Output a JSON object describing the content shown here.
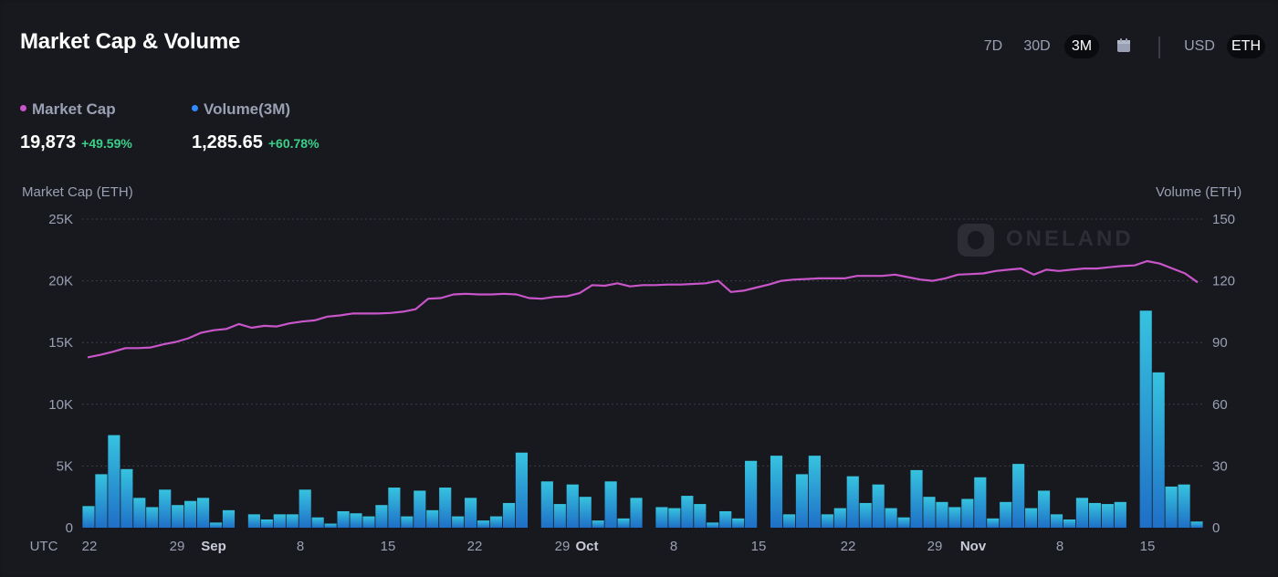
{
  "header": {
    "title": "Market Cap & Volume",
    "range_buttons": [
      "7D",
      "30D",
      "3M"
    ],
    "active_range": "3M",
    "currency_buttons": [
      "USD",
      "ETH"
    ],
    "active_currency": "ETH"
  },
  "metrics": {
    "market_cap": {
      "label": "Market Cap",
      "value": "19,873",
      "change": "+49.59%",
      "color": "#c855c9"
    },
    "volume": {
      "label": "Volume(3M)",
      "value": "1,285.65",
      "change": "+60.78%",
      "color": "#2f8bff"
    }
  },
  "watermark": "ONELAND",
  "chart_data": {
    "type": "bar+line",
    "left_axis_label": "Market Cap (ETH)",
    "right_axis_label": "Volume (ETH)",
    "left_ticks": [
      "0",
      "5K",
      "10K",
      "15K",
      "20K",
      "25K"
    ],
    "right_ticks": [
      "0",
      "30",
      "60",
      "90",
      "120",
      "150"
    ],
    "ylim_left": [
      0,
      25000
    ],
    "ylim_right": [
      0,
      150
    ],
    "x_labels": [
      {
        "label": "UTC",
        "bold": false
      },
      {
        "label": "22",
        "bold": false
      },
      {
        "label": "29",
        "bold": false
      },
      {
        "label": "Sep",
        "bold": true
      },
      {
        "label": "8",
        "bold": false
      },
      {
        "label": "15",
        "bold": false
      },
      {
        "label": "22",
        "bold": false
      },
      {
        "label": "29",
        "bold": false
      },
      {
        "label": "Oct",
        "bold": true
      },
      {
        "label": "8",
        "bold": false
      },
      {
        "label": "15",
        "bold": false
      },
      {
        "label": "22",
        "bold": false
      },
      {
        "label": "29",
        "bold": false
      },
      {
        "label": "Nov",
        "bold": true
      },
      {
        "label": "8",
        "bold": false
      },
      {
        "label": "15",
        "bold": false
      }
    ],
    "series": [
      {
        "name": "Volume",
        "type": "bar",
        "axis": "right",
        "color": "#2fb4dc",
        "values": [
          10.5,
          26,
          45,
          28.5,
          14.5,
          10,
          18.5,
          11,
          13,
          14.5,
          2.5,
          8.5,
          0,
          6.5,
          4,
          6.5,
          6.5,
          18.5,
          5,
          2,
          8,
          7,
          5.5,
          11,
          19.5,
          5.5,
          18,
          8.5,
          19.5,
          5.5,
          14.5,
          3.5,
          5.5,
          12,
          36.5,
          0,
          22.5,
          11.5,
          21,
          15,
          3.5,
          22.5,
          4.5,
          14.5,
          0,
          10,
          9.5,
          15.5,
          11.5,
          2.5,
          8,
          4.5,
          32.5,
          0,
          35,
          6.5,
          26,
          35,
          6.5,
          9.5,
          25,
          12,
          21,
          9.5,
          5,
          28,
          15,
          12.5,
          10,
          14,
          24.5,
          4.5,
          12.5,
          31,
          9.5,
          18,
          6.5,
          4,
          14.5,
          12,
          11.5,
          12.5,
          0,
          105.5,
          75.5,
          20,
          21,
          3
        ]
      },
      {
        "name": "Market Cap",
        "type": "line",
        "axis": "left",
        "color": "#c855c9",
        "values": [
          13800,
          14000,
          14250,
          14550,
          14550,
          14600,
          14850,
          15050,
          15350,
          15800,
          16000,
          16100,
          16500,
          16200,
          16350,
          16300,
          16550,
          16700,
          16800,
          17100,
          17200,
          17350,
          17350,
          17350,
          17400,
          17500,
          17700,
          18550,
          18600,
          18900,
          18950,
          18900,
          18900,
          18950,
          18900,
          18600,
          18550,
          18700,
          18750,
          19000,
          19650,
          19600,
          19800,
          19550,
          19650,
          19650,
          19700,
          19700,
          19750,
          19800,
          20000,
          19100,
          19200,
          19450,
          19700,
          20000,
          20100,
          20150,
          20200,
          20200,
          20200,
          20400,
          20400,
          20400,
          20500,
          20300,
          20100,
          20000,
          20200,
          20500,
          20550,
          20600,
          20800,
          20900,
          21000,
          20500,
          20900,
          20800,
          20900,
          21000,
          21000,
          21100,
          21200,
          21250,
          21600,
          21400,
          21000,
          20600,
          19873
        ]
      }
    ]
  }
}
